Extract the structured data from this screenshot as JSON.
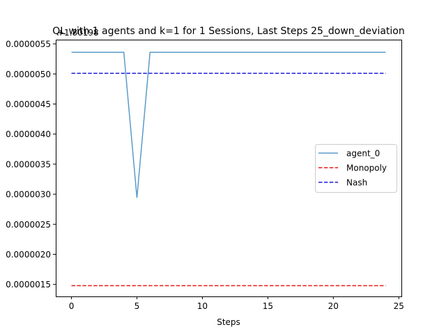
{
  "chart_data": {
    "type": "line",
    "title": "QL with 1 agents and k=1 for 1 Sessions, Last Steps 25_down_deviation",
    "xlabel": "Steps",
    "ylabel": "",
    "y_offset_text": "+1.80198",
    "xlim": [
      -1.2,
      25.2
    ],
    "ylim": [
      1.3e-06,
      5.57e-06
    ],
    "x_ticks": [
      0,
      5,
      10,
      15,
      20,
      25
    ],
    "x_tick_labels": [
      "0",
      "5",
      "10",
      "15",
      "20",
      "25"
    ],
    "y_ticks": [
      1.5e-06,
      2e-06,
      2.5e-06,
      3e-06,
      3.5e-06,
      4e-06,
      4.5e-06,
      5e-06,
      5.5e-06
    ],
    "y_tick_labels": [
      "0.0000015",
      "0.0000020",
      "0.0000025",
      "0.0000030",
      "0.0000035",
      "0.0000040",
      "0.0000045",
      "0.0000050",
      "0.0000055"
    ],
    "grid": false,
    "legend_position": "center-right",
    "series": [
      {
        "name": "agent_0",
        "style": "solid",
        "color": "#5b9bc9",
        "x": [
          0,
          1,
          2,
          3,
          4,
          5,
          6,
          7,
          8,
          9,
          10,
          11,
          12,
          13,
          14,
          15,
          16,
          17,
          18,
          19,
          20,
          21,
          22,
          23,
          24
        ],
        "y": [
          5.36e-06,
          5.36e-06,
          5.36e-06,
          5.36e-06,
          5.36e-06,
          2.94e-06,
          5.36e-06,
          5.36e-06,
          5.36e-06,
          5.36e-06,
          5.36e-06,
          5.36e-06,
          5.36e-06,
          5.36e-06,
          5.36e-06,
          5.36e-06,
          5.36e-06,
          5.36e-06,
          5.36e-06,
          5.36e-06,
          5.36e-06,
          5.36e-06,
          5.36e-06,
          5.36e-06,
          5.36e-06
        ]
      },
      {
        "name": "Monopoly",
        "style": "dashed",
        "color": "#e8191a",
        "x": [
          0,
          24
        ],
        "y": [
          1.48e-06,
          1.48e-06
        ]
      },
      {
        "name": "Nash",
        "style": "dashed",
        "color": "#1c19d6",
        "x": [
          0,
          24
        ],
        "y": [
          5.01e-06,
          5.01e-06
        ]
      }
    ]
  }
}
